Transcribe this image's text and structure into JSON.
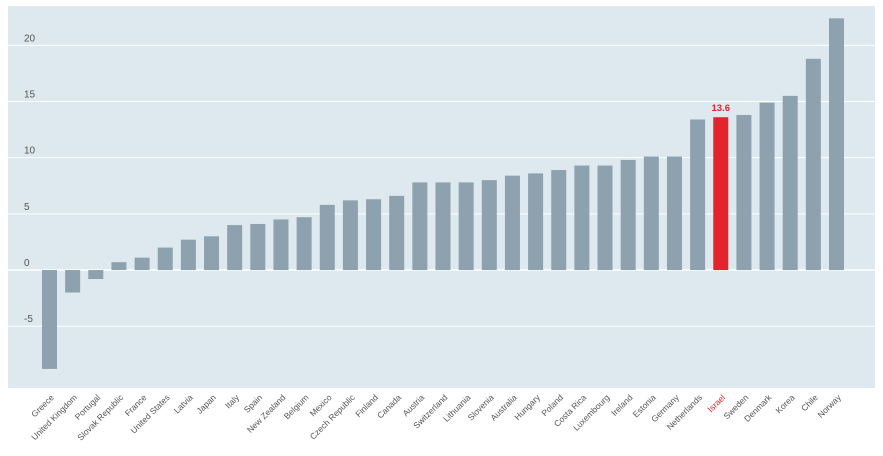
{
  "chart_data": {
    "type": "bar",
    "categories": [
      "Greece",
      "United Kingdom",
      "Portugal",
      "Slovak Republic",
      "France",
      "United States",
      "Latvia",
      "Japan",
      "Italy",
      "Spain",
      "New Zealand",
      "Belgium",
      "Mexico",
      "Czech Republic",
      "Finland",
      "Canada",
      "Austria",
      "Switzerland",
      "Lithuania",
      "Slovenia",
      "Australia",
      "Hungary",
      "Poland",
      "Costa Rica",
      "Luxembourg",
      "Ireland",
      "Estonia",
      "Germany",
      "Netherlands",
      "Israel",
      "Sweden",
      "Denmark",
      "Korea",
      "Chile",
      "Norway"
    ],
    "values": [
      -8.8,
      -2.0,
      -0.8,
      0.7,
      1.1,
      2.0,
      2.7,
      3.0,
      4.0,
      4.1,
      4.5,
      4.7,
      5.8,
      6.2,
      6.3,
      6.6,
      7.8,
      7.8,
      7.8,
      8.0,
      8.4,
      8.6,
      8.9,
      9.3,
      9.3,
      9.8,
      10.1,
      10.1,
      13.4,
      13.6,
      13.8,
      14.9,
      15.5,
      18.8,
      22.4
    ],
    "highlight": {
      "category": "Israel",
      "label": "13.6",
      "color": "#e3242b"
    },
    "bar_color": "#8da2ae",
    "background_color": "#dde8ef",
    "grid_color": "#ffffff",
    "ylim": [
      -10.5,
      23.5
    ],
    "yticks": [
      -5,
      0,
      5,
      10,
      15,
      20
    ],
    "grid": true,
    "title": "",
    "xlabel": "",
    "ylabel": ""
  }
}
